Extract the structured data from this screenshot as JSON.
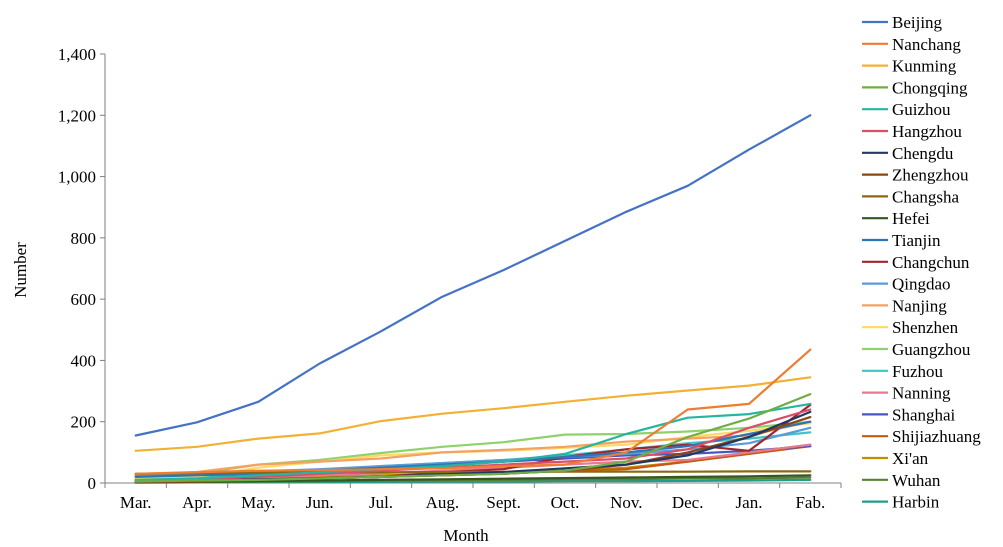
{
  "chart_data": {
    "type": "line",
    "xlabel": "Month",
    "ylabel": "Number",
    "ylim": [
      0,
      1400
    ],
    "yticks": [
      "0",
      "200",
      "400",
      "600",
      "800",
      "1,000",
      "1,200",
      "1,400"
    ],
    "categories": [
      "Mar.",
      "Apr.",
      "May.",
      "Jun.",
      "Jul.",
      "Aug.",
      "Sept.",
      "Oct.",
      "Nov.",
      "Dec.",
      "Jan.",
      "Fab."
    ],
    "grid": false,
    "legend_position": "right",
    "series": [
      {
        "name": "Beijing",
        "color": "#4472C4",
        "values": [
          155,
          198,
          265,
          390,
          495,
          608,
          695,
          790,
          885,
          970,
          1088,
          1200
        ]
      },
      {
        "name": "Nanchang",
        "color": "#ED7D31",
        "values": [
          30,
          35,
          40,
          42,
          45,
          48,
          55,
          60,
          100,
          240,
          258,
          435
        ]
      },
      {
        "name": "Kunming",
        "color": "#F2B134",
        "values": [
          105,
          118,
          145,
          162,
          202,
          226,
          244,
          265,
          285,
          302,
          318,
          345
        ]
      },
      {
        "name": "Chongqing",
        "color": "#70AD47",
        "values": [
          5,
          8,
          10,
          15,
          20,
          25,
          30,
          40,
          70,
          150,
          210,
          290
        ]
      },
      {
        "name": "Guizhou",
        "color": "#26B5A0",
        "values": [
          10,
          15,
          25,
          35,
          45,
          55,
          70,
          95,
          160,
          213,
          225,
          258
        ]
      },
      {
        "name": "Hangzhou",
        "color": "#D94F6A",
        "values": [
          8,
          12,
          20,
          30,
          40,
          50,
          60,
          70,
          80,
          110,
          180,
          240
        ]
      },
      {
        "name": "Chengdu",
        "color": "#203864",
        "values": [
          5,
          8,
          12,
          16,
          20,
          28,
          36,
          48,
          60,
          90,
          150,
          232
        ]
      },
      {
        "name": "Zhengzhou",
        "color": "#8B4513",
        "values": [
          3,
          5,
          10,
          15,
          20,
          25,
          30,
          40,
          60,
          100,
          150,
          215
        ]
      },
      {
        "name": "Changsha",
        "color": "#8B6914",
        "values": [
          30,
          32,
          33,
          34,
          35,
          36,
          36,
          37,
          37,
          37,
          38,
          38
        ]
      },
      {
        "name": "Hefei",
        "color": "#375623",
        "values": [
          2,
          4,
          6,
          8,
          10,
          12,
          14,
          16,
          18,
          20,
          22,
          25
        ]
      },
      {
        "name": "Tianjin",
        "color": "#2E75B6",
        "values": [
          20,
          25,
          30,
          40,
          50,
          60,
          70,
          85,
          100,
          120,
          160,
          200
        ]
      },
      {
        "name": "Changchun",
        "color": "#A0262E",
        "values": [
          5,
          8,
          10,
          15,
          20,
          35,
          45,
          85,
          110,
          125,
          105,
          255
        ]
      },
      {
        "name": "Qingdao",
        "color": "#5B9BD5",
        "values": [
          25,
          30,
          38,
          45,
          55,
          65,
          75,
          85,
          95,
          110,
          130,
          180
        ]
      },
      {
        "name": "Nanjing",
        "color": "#F4A261",
        "values": [
          30,
          36,
          60,
          70,
          80,
          100,
          108,
          118,
          135,
          145,
          155,
          200
        ]
      },
      {
        "name": "Shenzhen",
        "color": "#FFD966",
        "values": [
          15,
          20,
          50,
          70,
          90,
          100,
          105,
          115,
          125,
          150,
          170,
          195
        ]
      },
      {
        "name": "Guangzhou",
        "color": "#8FD16B",
        "values": [
          20,
          30,
          60,
          75,
          98,
          118,
          133,
          158,
          160,
          168,
          180,
          200
        ]
      },
      {
        "name": "Fuzhou",
        "color": "#40C4C4",
        "values": [
          10,
          20,
          30,
          40,
          55,
          65,
          75,
          90,
          110,
          130,
          145,
          165
        ]
      },
      {
        "name": "Nanning",
        "color": "#E87A90",
        "values": [
          5,
          10,
          18,
          25,
          32,
          40,
          50,
          60,
          70,
          75,
          100,
          125
        ]
      },
      {
        "name": "Shanghai",
        "color": "#4557C4",
        "values": [
          15,
          25,
          30,
          40,
          50,
          60,
          70,
          80,
          90,
          95,
          105,
          120
        ]
      },
      {
        "name": "Shijiazhuang",
        "color": "#C65911",
        "values": [
          5,
          8,
          10,
          15,
          20,
          25,
          30,
          40,
          45,
          70,
          95,
          120
        ]
      },
      {
        "name": "Xi'an",
        "color": "#BF9000",
        "values": [
          5,
          10,
          15,
          20,
          25,
          30,
          35,
          40,
          50,
          70,
          100,
          125
        ]
      },
      {
        "name": "Wuhan",
        "color": "#548235",
        "values": [
          2,
          3,
          5,
          6,
          8,
          10,
          10,
          12,
          12,
          15,
          15,
          18
        ]
      },
      {
        "name": "Harbin",
        "color": "#1F9E89",
        "values": [
          1,
          2,
          2,
          3,
          4,
          5,
          5,
          6,
          6,
          7,
          8,
          10
        ]
      }
    ]
  }
}
